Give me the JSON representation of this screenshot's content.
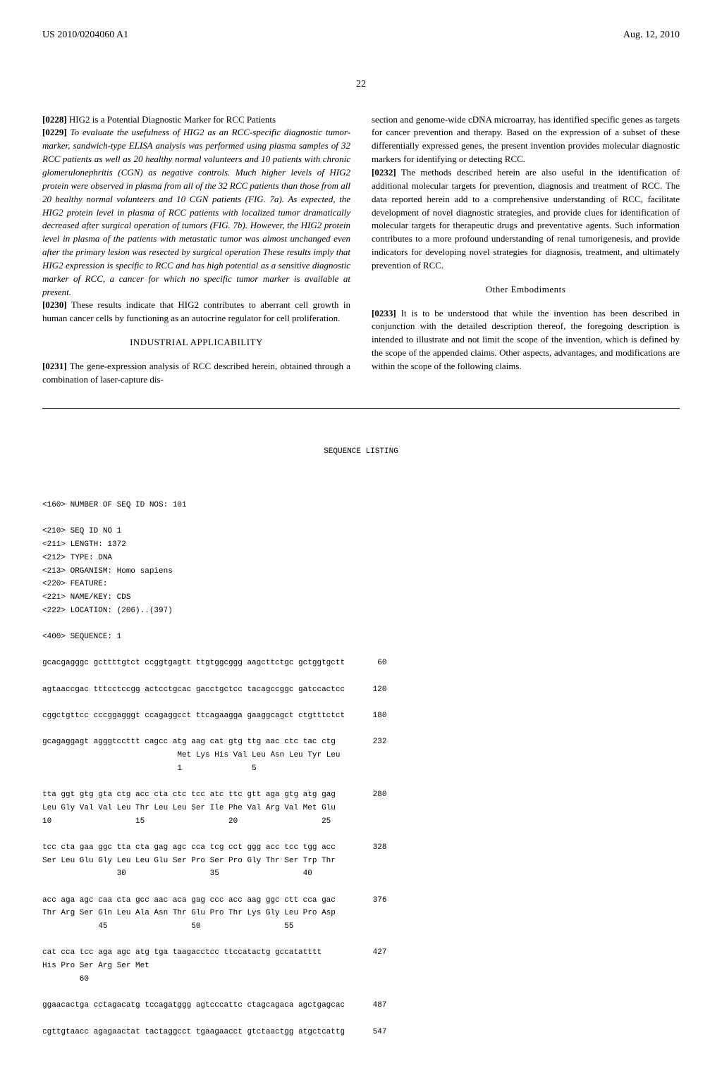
{
  "header": {
    "left": "US 2010/0204060 A1",
    "right": "Aug. 12, 2010"
  },
  "page_number": "22",
  "left_col": {
    "p1_num": "[0228]",
    "p1_text": " HIG2 is a Potential Diagnostic Marker for RCC Patients",
    "p2_num": "[0229]",
    "p2_text": " To evaluate the usefulness of HIG2 as an RCC-specific diagnostic tumor-marker, sandwich-type ELISA analysis was performed using plasma samples of 32 RCC patients as well as 20 healthy normal volunteers and 10 patients with chronic glomerulonephritis (CGN) as negative controls. Much higher levels of HIG2 protein were observed in plasma from all of the 32 RCC patients than those from all 20 healthy normal volunteers and 10 CGN patients (FIG. 7a). As expected, the HIG2 protein level in plasma of RCC patients with localized tumor dramatically decreased after surgical operation of tumors (FIG. 7b). However, the HIG2 protein level in plasma of the patients with metastatic tumor was almost unchanged even after the primary lesion was resected by surgical operation These results imply that HIG2 expression is specific to RCC and has high potential as a sensitive diagnostic marker of RCC, a cancer for which no specific tumor marker is available at present.",
    "p3_num": "[0230]",
    "p3_text": " These results indicate that HIG2 contributes to aberrant cell growth in human cancer cells by functioning as an autocrine regulator for cell proliferation.",
    "industrial_heading": "INDUSTRIAL APPLICABILITY",
    "p4_num": "[0231]",
    "p4_text": " The gene-expression analysis of RCC described herein, obtained through a combination of laser-capture dis-"
  },
  "right_col": {
    "p1_text": "section and genome-wide cDNA microarray, has identified specific genes as targets for cancer prevention and therapy. Based on the expression of a subset of these differentially expressed genes, the present invention provides molecular diagnostic markers for identifying or detecting RCC.",
    "p2_num": "[0232]",
    "p2_text": " The methods described herein are also useful in the identification of additional molecular targets for prevention, diagnosis and treatment of RCC. The data reported herein add to a comprehensive understanding of RCC, facilitate development of novel diagnostic strategies, and provide clues for identification of molecular targets for therapeutic drugs and preventative agents. Such information contributes to a more profound understanding of renal tumorigenesis, and provide indicators for developing novel strategies for diagnosis, treatment, and ultimately prevention of RCC.",
    "other_heading": "Other Embodiments",
    "p3_num": "[0233]",
    "p3_text": " It is to be understood that while the invention has been described in conjunction with the detailed description thereof, the foregoing description is intended to illustrate and not limit the scope of the invention, which is defined by the scope of the appended claims. Other aspects, advantages, and modifications are within the scope of the following claims."
  },
  "sequence": {
    "title": "SEQUENCE LISTING",
    "block": "<160> NUMBER OF SEQ ID NOS: 101\n\n<210> SEQ ID NO 1\n<211> LENGTH: 1372\n<212> TYPE: DNA\n<213> ORGANISM: Homo sapiens\n<220> FEATURE:\n<221> NAME/KEY: CDS\n<222> LOCATION: (206)..(397)\n\n<400> SEQUENCE: 1\n\ngcacgagggc gcttttgtct ccggtgagtt ttgtggcggg aagcttctgc gctggtgctt       60\n\nagtaaccgac tttcctccgg actcctgcac gacctgctcc tacagccggc gatccactcc      120\n\ncggctgttcc cccggagggt ccagaggcct ttcagaagga gaaggcagct ctgtttctct      180\n\ngcagaggagt agggtccttt cagcc atg aag cat gtg ttg aac ctc tac ctg        232\n                             Met Lys His Val Leu Asn Leu Tyr Leu\n                             1               5\n\ntta ggt gtg gta ctg acc cta ctc tcc atc ttc gtt aga gtg atg gag        280\nLeu Gly Val Val Leu Thr Leu Leu Ser Ile Phe Val Arg Val Met Glu\n10                  15                  20                  25\n\ntcc cta gaa ggc tta cta gag agc cca tcg cct ggg acc tcc tgg acc        328\nSer Leu Glu Gly Leu Leu Glu Ser Pro Ser Pro Gly Thr Ser Trp Thr\n                30                  35                  40\n\nacc aga agc caa cta gcc aac aca gag ccc acc aag ggc ctt cca gac        376\nThr Arg Ser Gln Leu Ala Asn Thr Glu Pro Thr Lys Gly Leu Pro Asp\n            45                  50                  55\n\ncat cca tcc aga agc atg tga taagacctcc ttccatactg gccatatttt           427\nHis Pro Ser Arg Ser Met\n        60\n\nggaacactga cctagacatg tccagatggg agtcccattc ctagcagaca agctgagcac      487\n\ncgttgtaacc agagaactat tactaggcct tgaagaacct gtctaactgg atgctcattg      547"
  }
}
